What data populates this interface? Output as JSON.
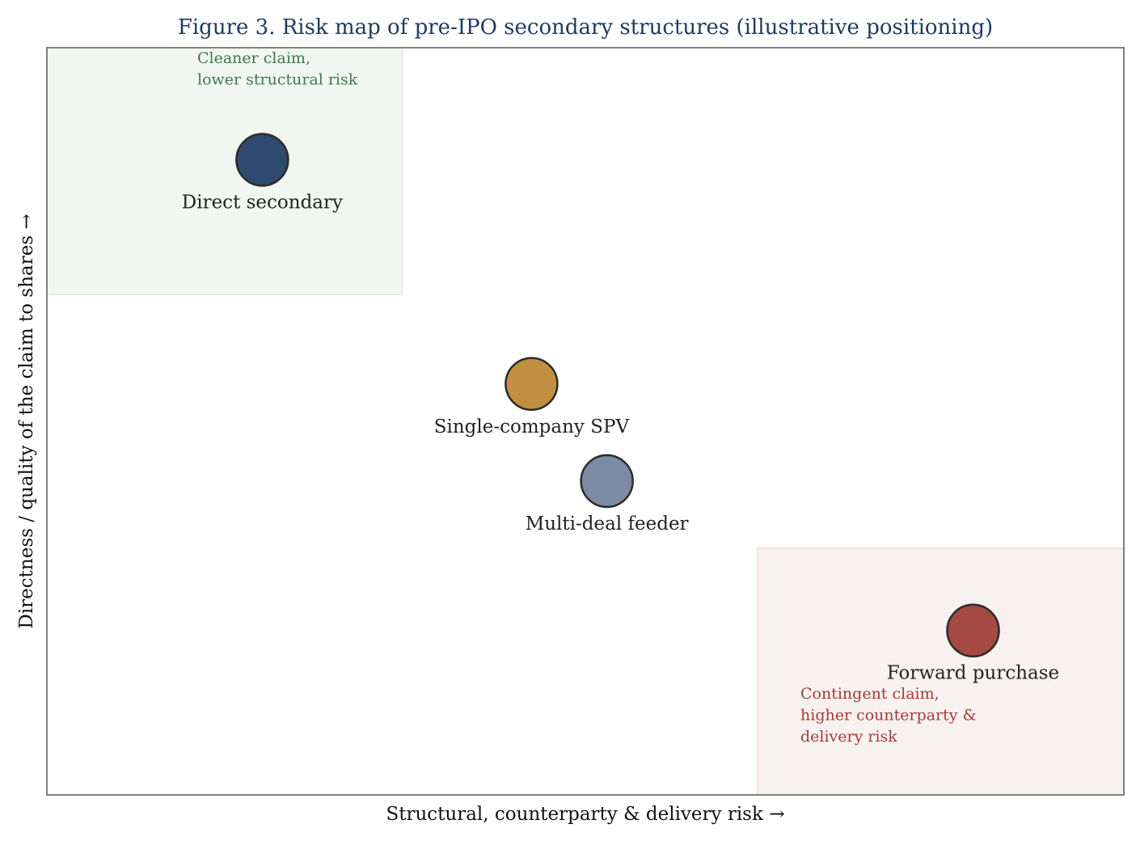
{
  "chart_data": {
    "type": "scatter",
    "title": "Figure 3.  Risk map of pre-IPO secondary structures (illustrative positioning)",
    "xlabel": "Structural, counterparty & delivery risk  →",
    "ylabel": "Directness / quality of the claim to shares  →",
    "xlim": [
      0,
      10
    ],
    "ylim": [
      0,
      10
    ],
    "grid": false,
    "legend": "none",
    "points": [
      {
        "label": "Direct secondary",
        "x": 2.0,
        "y": 8.5,
        "color": "#2e4a6e"
      },
      {
        "label": "Single-company SPV",
        "x": 4.5,
        "y": 5.5,
        "color": "#c09040"
      },
      {
        "label": "Multi-deal feeder",
        "x": 5.2,
        "y": 4.2,
        "color": "#7a8ba3"
      },
      {
        "label": "Forward purchase",
        "x": 8.6,
        "y": 2.2,
        "color": "#a54a43"
      }
    ],
    "zones": [
      {
        "name": "cleaner-zone",
        "x_range": [
          0,
          3.3
        ],
        "y_range": [
          6.7,
          10
        ],
        "fill": "#f2f6f2",
        "text_color": "#3d7a4a",
        "note_lines": [
          "Cleaner claim,",
          "lower structural risk"
        ]
      },
      {
        "name": "riskier-zone",
        "x_range": [
          6.6,
          10
        ],
        "y_range": [
          0,
          3.3
        ],
        "fill": "#f7f2f0",
        "text_color": "#a53b36",
        "note_lines": [
          "Contingent claim,",
          "higher counterparty &",
          "delivery risk"
        ]
      }
    ]
  }
}
